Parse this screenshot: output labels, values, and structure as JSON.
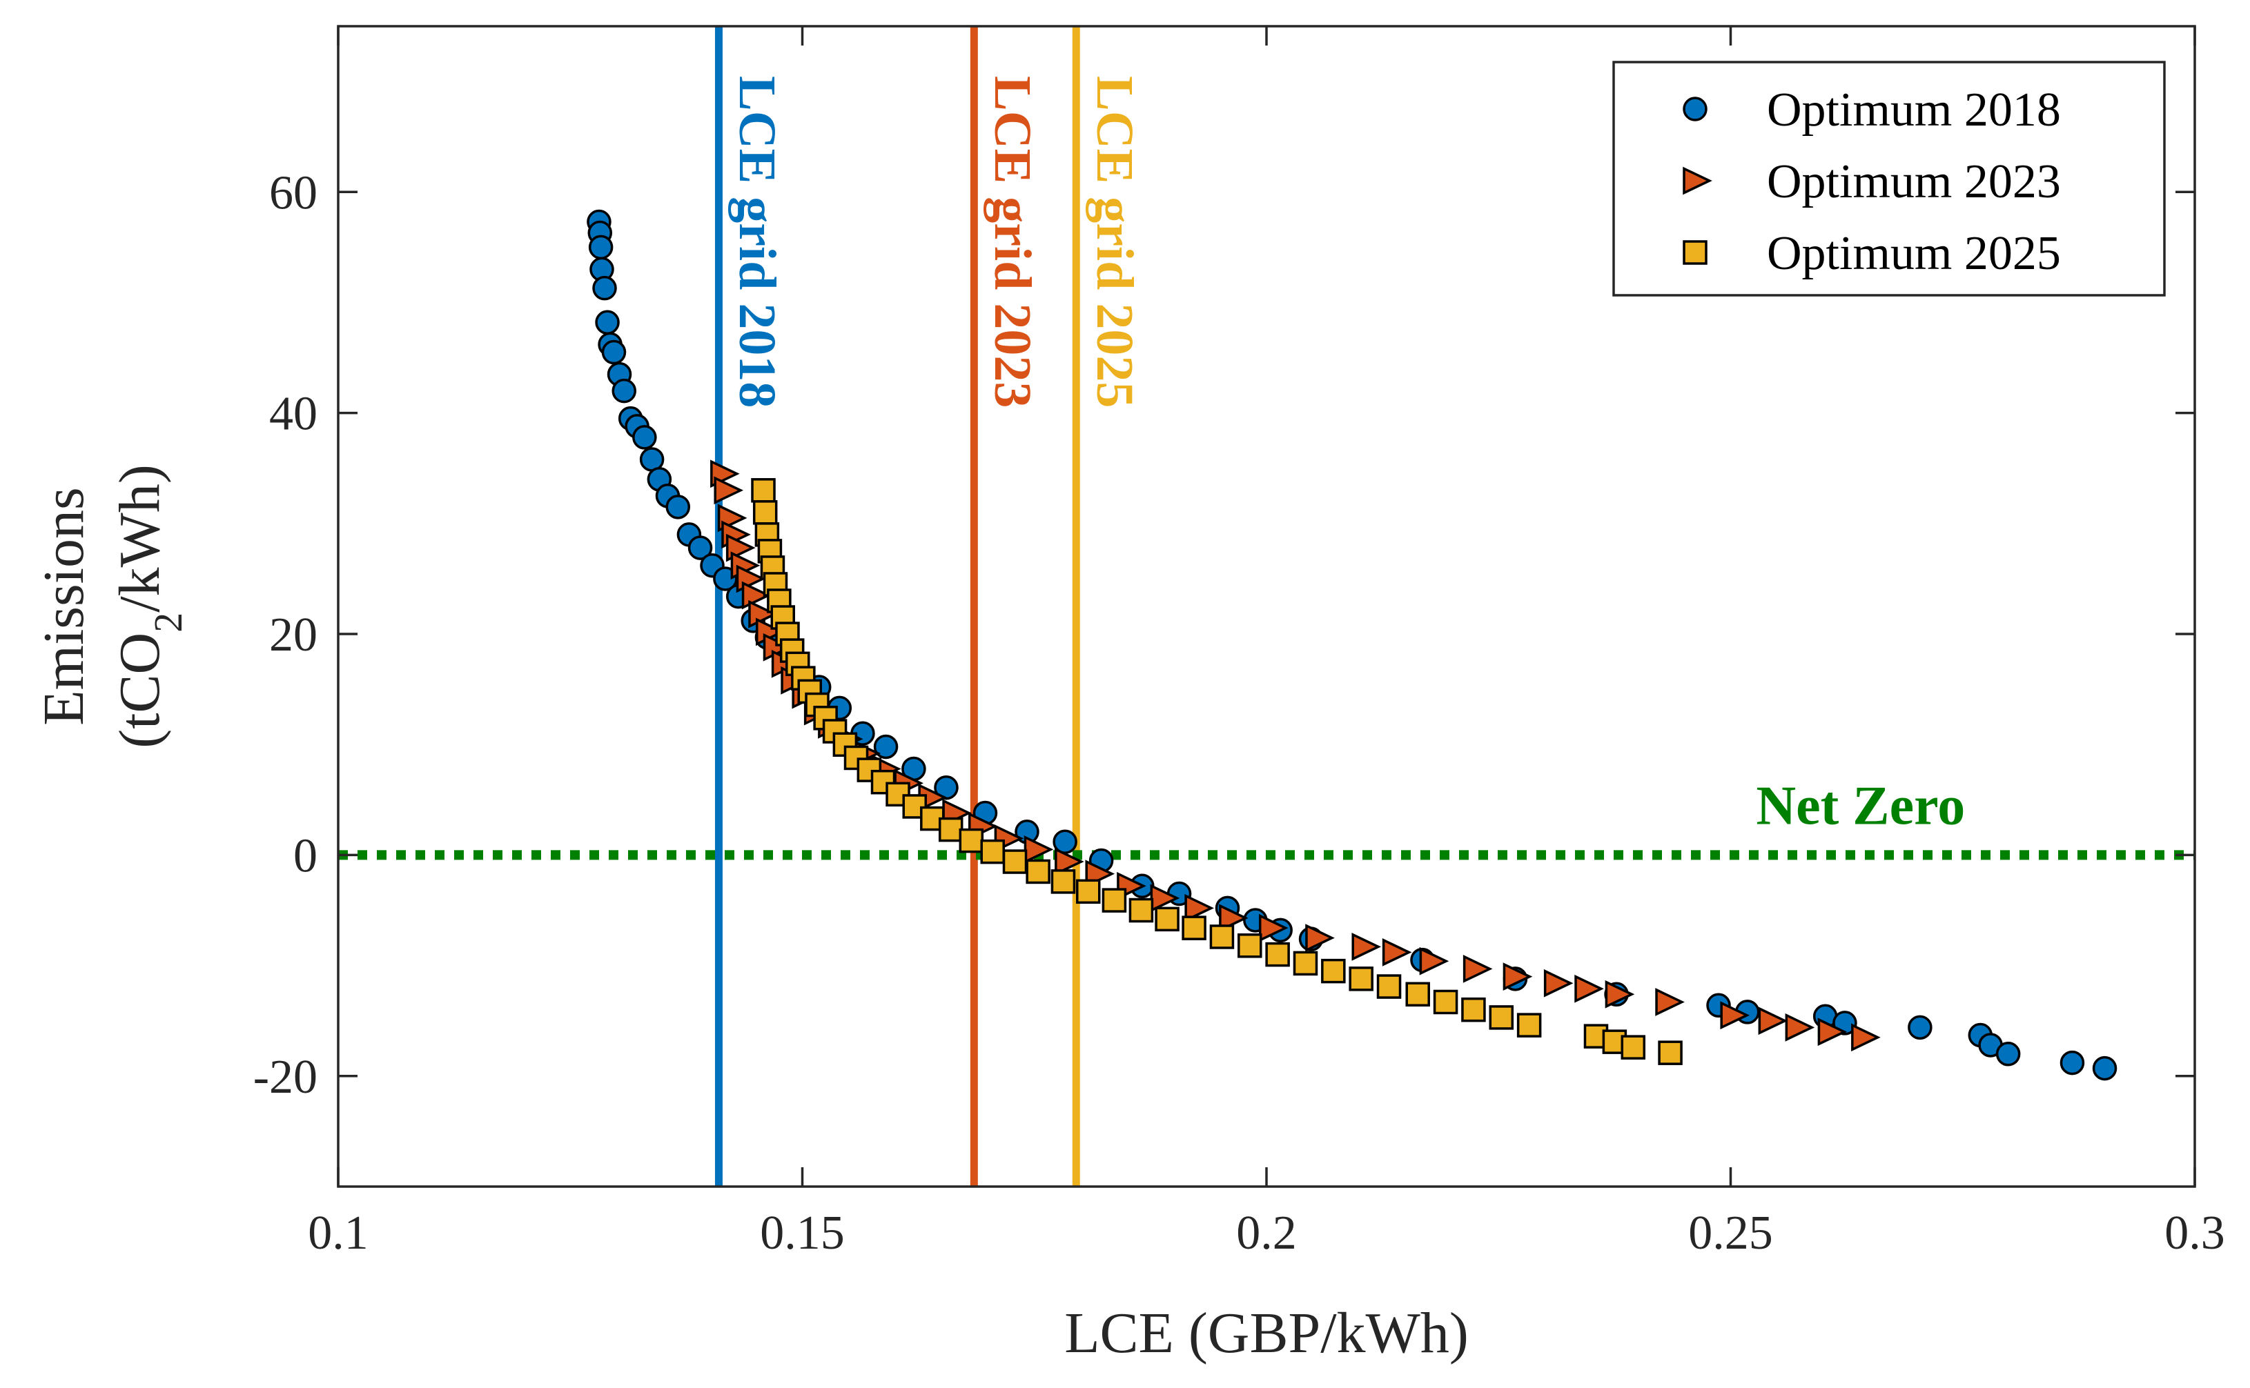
{
  "chart_data": {
    "type": "scatter",
    "xlabel": "LCE (GBP/kWh)",
    "ylabel_line1": "Emissions",
    "ylabel_line2_prefix": "(tCO",
    "ylabel_line2_sub": "2",
    "ylabel_line2_suffix": "/kWh)",
    "xlim": [
      0.1,
      0.3
    ],
    "ylim": [
      -30,
      75
    ],
    "xticks": [
      0.1,
      0.15,
      0.2,
      0.25,
      0.3
    ],
    "xtick_labels": [
      "0.1",
      "0.15",
      "0.2",
      "0.25",
      "0.3"
    ],
    "yticks": [
      -20,
      0,
      20,
      40,
      60
    ],
    "ytick_labels": [
      "-20",
      "0",
      "20",
      "40",
      "60"
    ],
    "grid": false,
    "legend_position": "top-right",
    "series": [
      {
        "name": "Optimum 2018",
        "marker": "circle",
        "color": "#0072BD",
        "x": [
          0.1281,
          0.1282,
          0.1283,
          0.1284,
          0.1287,
          0.129,
          0.1293,
          0.1297,
          0.1303,
          0.1308,
          0.1315,
          0.1322,
          0.133,
          0.1338,
          0.1346,
          0.1355,
          0.1366,
          0.1378,
          0.139,
          0.1403,
          0.1417,
          0.1431,
          0.1447,
          0.1462,
          0.148,
          0.1498,
          0.1518,
          0.154,
          0.1565,
          0.159,
          0.162,
          0.1655,
          0.1697,
          0.1742,
          0.1783,
          0.1822,
          0.1866,
          0.1906,
          0.1958,
          0.1988,
          0.2015,
          0.2048,
          0.2168,
          0.2268,
          0.2377,
          0.2487,
          0.2518,
          0.2602,
          0.2623,
          0.2704,
          0.2769,
          0.278,
          0.2799,
          0.2868,
          0.2903
        ],
        "y": [
          57.3,
          56.3,
          55,
          53,
          51.3,
          48.2,
          46.2,
          45.5,
          43.5,
          42,
          39.5,
          38.8,
          37.8,
          35.8,
          34,
          32.5,
          31.5,
          29,
          27.8,
          26.2,
          25,
          23.4,
          21.2,
          19.7,
          17.5,
          15.8,
          15.2,
          13.3,
          11,
          9.8,
          7.8,
          6.1,
          3.8,
          2.1,
          1.2,
          -0.5,
          -2.8,
          -3.5,
          -4.8,
          -5.9,
          -6.8,
          -7.6,
          -9.5,
          -11.2,
          -12.6,
          -13.6,
          -14.2,
          -14.6,
          -15.2,
          -15.6,
          -16.3,
          -17.2,
          -18,
          -18.8,
          -19.3
        ]
      },
      {
        "name": "Optimum 2023",
        "marker": "triangle-right",
        "color": "#D95319",
        "x": [
          0.1414,
          0.1418,
          0.1422,
          0.1426,
          0.1431,
          0.1436,
          0.1442,
          0.1448,
          0.1455,
          0.1463,
          0.1471,
          0.148,
          0.149,
          0.1502,
          0.1515,
          0.153,
          0.1547,
          0.1566,
          0.1588,
          0.1612,
          0.1638,
          0.1664,
          0.1692,
          0.172,
          0.1752,
          0.1785,
          0.1818,
          0.1852,
          0.1888,
          0.1925,
          0.1962,
          0.2005,
          0.2055,
          0.2105,
          0.2138,
          0.2178,
          0.2225,
          0.2268,
          0.2312,
          0.2345,
          0.2378,
          0.2432,
          0.2502,
          0.2543,
          0.2572,
          0.2607,
          0.2643
        ],
        "y": [
          34.5,
          33,
          30.5,
          29,
          27.8,
          26.2,
          25,
          23.5,
          21.8,
          20.2,
          18.8,
          17.3,
          15.8,
          14.5,
          13,
          11.8,
          10.5,
          9.2,
          7.8,
          6.5,
          5.2,
          3.8,
          2.6,
          1.5,
          0.5,
          -0.6,
          -1.7,
          -2.8,
          -3.9,
          -4.8,
          -5.7,
          -6.6,
          -7.5,
          -8.3,
          -8.8,
          -9.6,
          -10.3,
          -11,
          -11.6,
          -12.1,
          -12.6,
          -13.3,
          -14.5,
          -15,
          -15.6,
          -16,
          -16.5
        ]
      },
      {
        "name": "Optimum 2025",
        "marker": "square",
        "color": "#EDB120",
        "x": [
          0.1458,
          0.146,
          0.1462,
          0.1465,
          0.1468,
          0.1471,
          0.1475,
          0.1479,
          0.1484,
          0.1489,
          0.1495,
          0.1501,
          0.1508,
          0.1516,
          0.1525,
          0.1535,
          0.1546,
          0.1558,
          0.1572,
          0.1587,
          0.1603,
          0.1621,
          0.164,
          0.166,
          0.1682,
          0.1705,
          0.1729,
          0.1754,
          0.1781,
          0.1808,
          0.1836,
          0.1865,
          0.1893,
          0.1922,
          0.1952,
          0.1982,
          0.2012,
          0.2042,
          0.2072,
          0.2102,
          0.2132,
          0.2163,
          0.2193,
          0.2223,
          0.2253,
          0.2283,
          0.2355,
          0.2375,
          0.2395,
          0.2435
        ],
        "y": [
          33,
          31,
          29,
          27.5,
          26,
          24.5,
          23,
          21.5,
          20,
          18.5,
          17.3,
          16,
          14.8,
          13.6,
          12.4,
          11.2,
          10,
          8.8,
          7.7,
          6.6,
          5.5,
          4.4,
          3.3,
          2.3,
          1.3,
          0.3,
          -0.6,
          -1.5,
          -2.4,
          -3.3,
          -4.1,
          -5,
          -5.8,
          -6.6,
          -7.4,
          -8.2,
          -9,
          -9.8,
          -10.5,
          -11.2,
          -11.9,
          -12.6,
          -13.3,
          -14,
          -14.7,
          -15.4,
          -16.4,
          -16.9,
          -17.4,
          -17.9
        ]
      }
    ],
    "vertical_lines": [
      {
        "x": 0.141,
        "label": "LCE grid 2018",
        "color": "#0072BD"
      },
      {
        "x": 0.1685,
        "label": "LCE grid 2023",
        "color": "#D95319"
      },
      {
        "x": 0.1795,
        "label": "LCE grid 2025",
        "color": "#EDB120"
      }
    ],
    "reference_line": {
      "y": 0,
      "label": "Net Zero",
      "color": "#008000",
      "style": "dotted"
    }
  }
}
